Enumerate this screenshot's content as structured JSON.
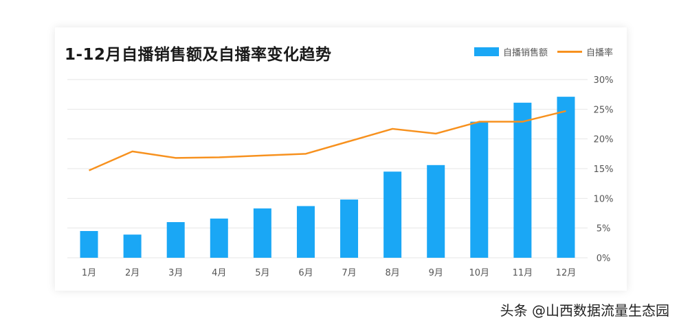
{
  "colors": {
    "bar": "#1aa7f5",
    "line": "#f7911e",
    "grid": "#e6e6e6"
  },
  "chart_data": {
    "type": "bar",
    "title": "1-12月自播销售额及自播率变化趋势",
    "categories": [
      "1月",
      "2月",
      "3月",
      "4月",
      "5月",
      "6月",
      "7月",
      "8月",
      "9月",
      "10月",
      "11月",
      "12月"
    ],
    "series": [
      {
        "name": "自播销售额",
        "type": "bar",
        "values": [
          4.5,
          3.9,
          6.0,
          6.6,
          8.3,
          8.7,
          9.8,
          14.5,
          15.6,
          22.9,
          26.1,
          27.1
        ]
      },
      {
        "name": "自播率",
        "type": "line",
        "axis": "right",
        "values": [
          14.7,
          17.9,
          16.8,
          16.9,
          17.2,
          17.5,
          19.6,
          21.7,
          20.9,
          22.9,
          22.9,
          24.7
        ]
      }
    ],
    "y_right": {
      "ticks": [
        "0%",
        "5%",
        "10%",
        "15%",
        "20%",
        "25%",
        "30%"
      ],
      "ylim": [
        0,
        30
      ]
    },
    "grid": true,
    "legend": "top-right"
  },
  "watermark": "头条 @山西数据流量生态园"
}
